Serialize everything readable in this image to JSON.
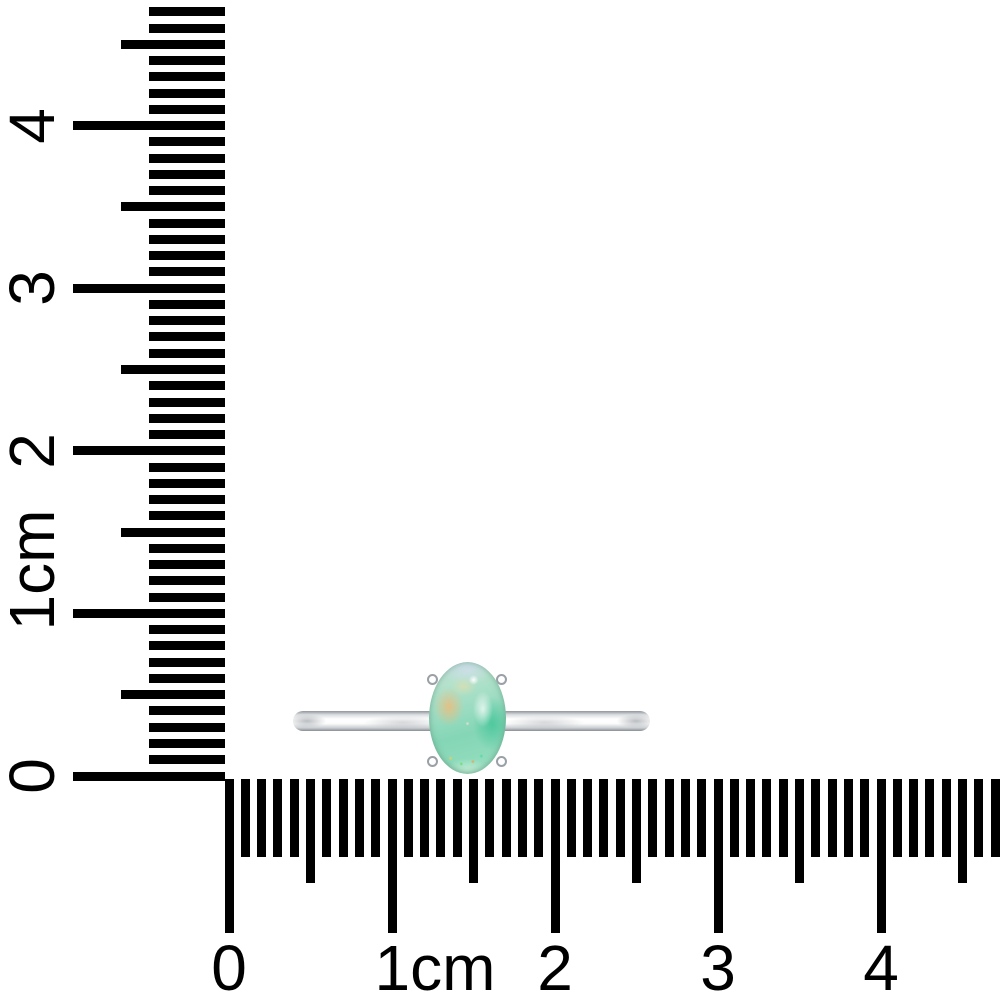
{
  "meta": {
    "description": "White-background product scale photo: opal solitaire ring lying against centimeter rulers",
    "background_color": "#ffffff"
  },
  "rulers": {
    "unit": "cm",
    "tick_color": "#000000",
    "minor_ticks_per_cm": 10,
    "vertical": {
      "orientation": "vertical",
      "range_cm": [
        0,
        4.7
      ],
      "labels_rotated_degrees": -90,
      "labels": [
        {
          "text": "0",
          "cm": 0
        },
        {
          "text": "1cm",
          "cm": 1
        },
        {
          "text": "2",
          "cm": 2
        },
        {
          "text": "3",
          "cm": 3
        },
        {
          "text": "4",
          "cm": 4
        }
      ]
    },
    "horizontal": {
      "orientation": "horizontal",
      "range_cm": [
        0,
        4.7
      ],
      "labels_rotated_degrees": 0,
      "labels": [
        {
          "text": "0",
          "cm": 0
        },
        {
          "text": "1cm",
          "cm": 1
        },
        {
          "text": "2",
          "cm": 2
        },
        {
          "text": "3",
          "cm": 3
        },
        {
          "text": "4",
          "cm": 4
        }
      ]
    }
  },
  "ring": {
    "item": "opal solitaire ring",
    "band_color": "#eceef0",
    "band_length_on_ruler_cm": 2.2,
    "prong_count": 4,
    "prong_color": "#9aa0a7",
    "stone": {
      "type": "opal",
      "cut": "oval cabochon",
      "width_on_ruler_cm": 0.47,
      "height_on_ruler_cm": 0.69,
      "base_color": "#9cdcc2",
      "accent_colors": [
        "#f2ba78",
        "#46c69a",
        "#cdDee8",
        "#ffffff"
      ]
    }
  }
}
